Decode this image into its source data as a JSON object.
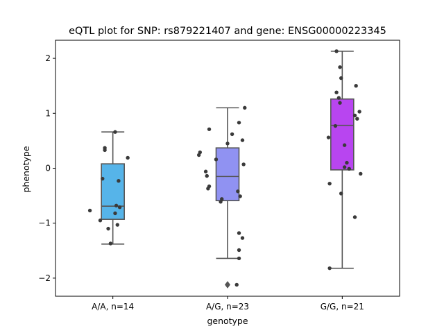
{
  "chart_data": {
    "type": "box",
    "title": "eQTL plot for SNP: rs879221407 and gene: ENSG00000223345",
    "xlabel": "genotype",
    "ylabel": "phenotype",
    "ylim": [
      -2.33,
      2.33
    ],
    "yticks": [
      -2,
      -1,
      0,
      1,
      2
    ],
    "ytick_labels": [
      "−2",
      "−1",
      "0",
      "1",
      "2"
    ],
    "grid": false,
    "categories": [
      "A/A, n=14",
      "A/G, n=23",
      "G/G, n=21"
    ],
    "boxes": [
      {
        "q1": -0.93,
        "median": -0.69,
        "q3": 0.08,
        "whisker_low": -1.38,
        "whisker_high": 0.66,
        "outliers": [],
        "color": "#56b4e9"
      },
      {
        "q1": -0.59,
        "median": -0.15,
        "q3": 0.37,
        "whisker_low": -1.64,
        "whisker_high": 1.1,
        "outliers": [
          -2.12
        ],
        "color": "#9092f2"
      },
      {
        "q1": -0.03,
        "median": 0.78,
        "q3": 1.26,
        "whisker_low": -1.82,
        "whisker_high": 2.13,
        "outliers": [],
        "color": "#b845f0"
      }
    ],
    "points": [
      [
        {
          "dx": 0.02,
          "y": 0.66
        },
        {
          "dx": -0.07,
          "y": 0.37
        },
        {
          "dx": -0.07,
          "y": 0.33
        },
        {
          "dx": 0.13,
          "y": 0.19
        },
        {
          "dx": -0.09,
          "y": -0.19
        },
        {
          "dx": 0.05,
          "y": -0.23
        },
        {
          "dx": 0.03,
          "y": -0.68
        },
        {
          "dx": 0.06,
          "y": -0.71
        },
        {
          "dx": -0.2,
          "y": -0.77
        },
        {
          "dx": 0.02,
          "y": -0.82
        },
        {
          "dx": -0.11,
          "y": -0.95
        },
        {
          "dx": 0.04,
          "y": -1.03
        },
        {
          "dx": -0.04,
          "y": -1.1
        },
        {
          "dx": -0.02,
          "y": -1.37
        }
      ],
      [
        {
          "dx": 0.15,
          "y": 1.1
        },
        {
          "dx": 0.1,
          "y": 0.83
        },
        {
          "dx": -0.16,
          "y": 0.71
        },
        {
          "dx": 0.04,
          "y": 0.62
        },
        {
          "dx": 0.13,
          "y": 0.51
        },
        {
          "dx": 0.0,
          "y": 0.45
        },
        {
          "dx": -0.24,
          "y": 0.29
        },
        {
          "dx": -0.25,
          "y": 0.24
        },
        {
          "dx": -0.1,
          "y": 0.16
        },
        {
          "dx": 0.14,
          "y": 0.07
        },
        {
          "dx": -0.19,
          "y": -0.06
        },
        {
          "dx": -0.18,
          "y": -0.14
        },
        {
          "dx": -0.16,
          "y": -0.33
        },
        {
          "dx": -0.17,
          "y": -0.37
        },
        {
          "dx": 0.09,
          "y": -0.42
        },
        {
          "dx": 0.11,
          "y": -0.51
        },
        {
          "dx": -0.05,
          "y": -0.56
        },
        {
          "dx": -0.06,
          "y": -0.61
        },
        {
          "dx": 0.1,
          "y": -1.18
        },
        {
          "dx": 0.13,
          "y": -1.27
        },
        {
          "dx": 0.1,
          "y": -1.49
        },
        {
          "dx": 0.1,
          "y": -1.64
        },
        {
          "dx": 0.08,
          "y": -2.12
        }
      ],
      [
        {
          "dx": -0.05,
          "y": 2.13
        },
        {
          "dx": -0.02,
          "y": 1.84
        },
        {
          "dx": -0.01,
          "y": 1.64
        },
        {
          "dx": 0.12,
          "y": 1.5
        },
        {
          "dx": -0.05,
          "y": 1.38
        },
        {
          "dx": -0.03,
          "y": 1.28
        },
        {
          "dx": -0.02,
          "y": 1.19
        },
        {
          "dx": 0.15,
          "y": 1.03
        },
        {
          "dx": 0.11,
          "y": 0.96
        },
        {
          "dx": 0.13,
          "y": 0.9
        },
        {
          "dx": -0.06,
          "y": 0.77
        },
        {
          "dx": -0.12,
          "y": 0.56
        },
        {
          "dx": 0.02,
          "y": 0.42
        },
        {
          "dx": 0.04,
          "y": 0.1
        },
        {
          "dx": 0.02,
          "y": 0.02
        },
        {
          "dx": 0.06,
          "y": -0.01
        },
        {
          "dx": 0.16,
          "y": -0.1
        },
        {
          "dx": -0.11,
          "y": -0.28
        },
        {
          "dx": -0.01,
          "y": -0.46
        },
        {
          "dx": 0.11,
          "y": -0.89
        },
        {
          "dx": -0.11,
          "y": -1.82
        }
      ]
    ],
    "point_color": "#3a3a3a",
    "line_color": "#555555"
  }
}
